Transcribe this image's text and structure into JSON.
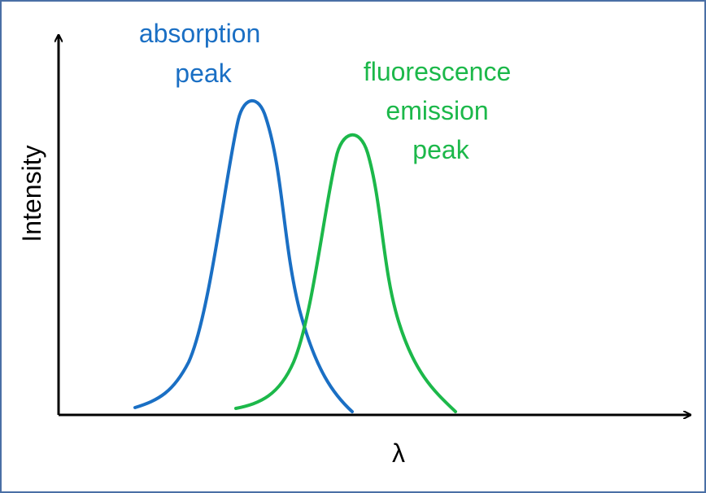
{
  "axes": {
    "y_label": "Intensity",
    "x_label": "λ"
  },
  "peaks": [
    {
      "label_lines": [
        "absorption",
        "peak"
      ],
      "color": "#1a6fc4"
    },
    {
      "label_lines": [
        "fluorescence",
        "emission",
        "peak"
      ],
      "color": "#1cb84a"
    }
  ],
  "colors": {
    "axis": "#000000",
    "frame": "#4a6fa5"
  }
}
